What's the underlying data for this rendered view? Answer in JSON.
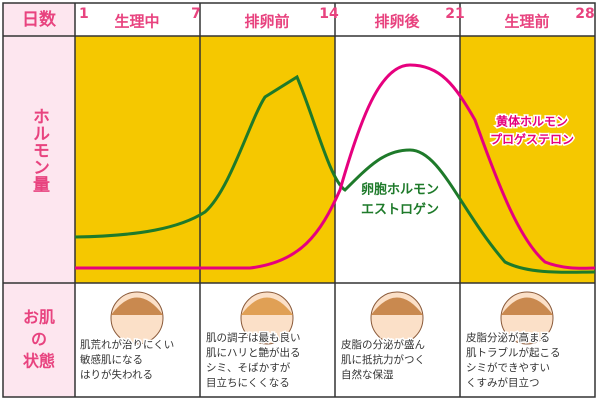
{
  "header": {
    "days_label": "日数",
    "days": [
      "1",
      "7",
      "14",
      "21",
      "28"
    ],
    "phases": [
      "生理中",
      "排卵前",
      "排卵後",
      "生理前"
    ]
  },
  "hormone": {
    "label": "ホルモン量",
    "estrogen": [
      "卵胞ホルモン",
      "エストロゲン"
    ],
    "progesterone": [
      "黄体ホルモン",
      "プロゲステロン"
    ]
  },
  "skin": {
    "label": [
      "お肌",
      "の",
      "状態"
    ],
    "notes": [
      [
        "肌荒れが治りにくい",
        "敏感肌になる",
        "はりが失われる"
      ],
      [
        "肌の調子は最も良い",
        "肌にハリと艶が出る",
        "シミ、そばかすが",
        "目立ちにくくなる"
      ],
      [
        "皮脂の分泌が盛ん",
        "肌に抵抗力がつく",
        "自然な保湿"
      ],
      [
        "皮脂分泌が高まる",
        "肌トラブルが起こる",
        "シミができやすい",
        "くすみが目立つ"
      ]
    ]
  }
}
